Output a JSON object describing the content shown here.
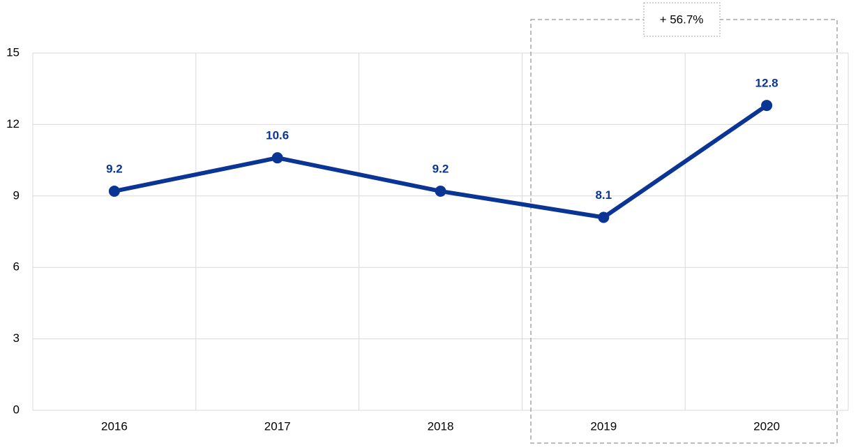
{
  "chart_data": {
    "type": "line",
    "categories": [
      "2016",
      "2017",
      "2018",
      "2019",
      "2020"
    ],
    "series": [
      {
        "name": null,
        "color": "#0a3595",
        "values": [
          9.2,
          10.6,
          9.2,
          8.1,
          12.8
        ]
      }
    ],
    "ylim": [
      0,
      15
    ],
    "yticks": [
      0,
      3,
      6,
      9,
      12,
      15
    ],
    "grid": true,
    "annotation": "+ 56.7%",
    "annotation_color": "#e00000"
  }
}
